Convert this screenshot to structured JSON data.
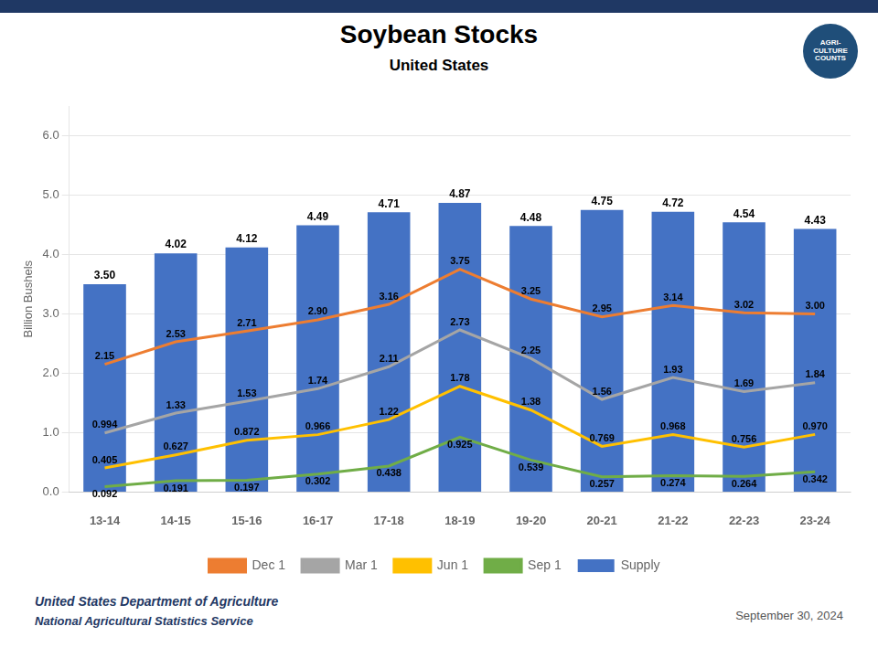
{
  "chart_data": {
    "type": "bar",
    "title": "Soybean Stocks",
    "subtitle": "United States",
    "y_label": "Billion Bushels",
    "categories": [
      "13-14",
      "14-15",
      "15-16",
      "16-17",
      "17-18",
      "18-19",
      "19-20",
      "20-21",
      "21-22",
      "22-23",
      "23-24"
    ],
    "series": [
      {
        "name": "Supply",
        "type": "bar",
        "color": "#4472C4",
        "values": [
          3.5,
          4.02,
          4.12,
          4.49,
          4.71,
          4.87,
          4.48,
          4.75,
          4.72,
          4.54,
          4.43
        ],
        "value_labels": [
          "3.50",
          "4.02",
          "4.12",
          "4.49",
          "4.71",
          "4.87",
          "4.48",
          "4.75",
          "4.72",
          "4.54",
          "4.43"
        ]
      },
      {
        "name": "Dec 1",
        "type": "line",
        "color": "#ED7D31",
        "values": [
          2.15,
          2.53,
          2.71,
          2.9,
          3.16,
          3.75,
          3.25,
          2.95,
          3.14,
          3.02,
          3.0
        ],
        "value_labels": [
          "2.15",
          "2.53",
          "2.71",
          "2.90",
          "3.16",
          "3.75",
          "3.25",
          "2.95",
          "3.14",
          "3.02",
          "3.00"
        ]
      },
      {
        "name": "Mar 1",
        "type": "line",
        "color": "#A5A5A5",
        "values": [
          0.994,
          1.33,
          1.53,
          1.74,
          2.11,
          2.73,
          2.25,
          1.56,
          1.93,
          1.69,
          1.84
        ],
        "value_labels": [
          "0.994",
          "1.33",
          "1.53",
          "1.74",
          "2.11",
          "2.73",
          "2.25",
          "1.56",
          "1.93",
          "1.69",
          "1.84"
        ]
      },
      {
        "name": "Jun 1",
        "type": "line",
        "color": "#FFC000",
        "values": [
          0.405,
          0.627,
          0.872,
          0.966,
          1.22,
          1.78,
          1.38,
          0.769,
          0.968,
          0.756,
          0.97
        ],
        "value_labels": [
          "0.405",
          "0.627",
          "0.872",
          "0.966",
          "1.22",
          "1.78",
          "1.38",
          "0.769",
          "0.968",
          "0.756",
          "0.970"
        ]
      },
      {
        "name": "Sep 1",
        "type": "line",
        "color": "#70AD47",
        "values": [
          0.092,
          0.191,
          0.197,
          0.302,
          0.438,
          0.925,
          0.539,
          0.257,
          0.274,
          0.264,
          0.342
        ],
        "value_labels": [
          "0.092",
          "0.191",
          "0.197",
          "0.302",
          "0.438",
          "0.925",
          "0.539",
          "0.257",
          "0.274",
          "0.264",
          "0.342"
        ]
      }
    ],
    "ylim": [
      0.0,
      6.5
    ],
    "yticks": [
      {
        "value": 0.0,
        "label": "0.0"
      },
      {
        "value": 1.0,
        "label": "1.0"
      },
      {
        "value": 2.0,
        "label": "2.0"
      },
      {
        "value": 3.0,
        "label": "3.0"
      },
      {
        "value": 4.0,
        "label": "4.0"
      },
      {
        "value": 5.0,
        "label": "5.0"
      },
      {
        "value": 6.0,
        "label": "6.0"
      }
    ],
    "grid": true,
    "legend": "bottom",
    "data_labels": true,
    "annotations": [
      "AGRI-\nCULTURE",
      "COUNTS",
      "United States Department of Agriculture",
      "National Agricultural Statistics Service",
      "September 30, 2024"
    ]
  }
}
